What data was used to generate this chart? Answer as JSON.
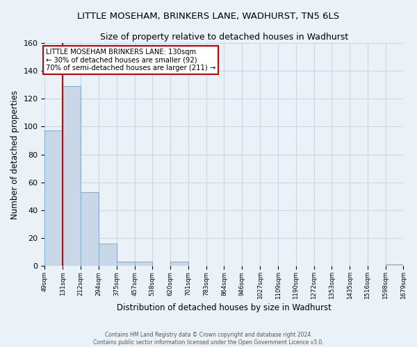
{
  "title": "LITTLE MOSEHAM, BRINKERS LANE, WADHURST, TN5 6LS",
  "subtitle": "Size of property relative to detached houses in Wadhurst",
  "xlabel": "Distribution of detached houses by size in Wadhurst",
  "ylabel": "Number of detached properties",
  "bin_edges": [
    49,
    131,
    212,
    294,
    375,
    457,
    538,
    620,
    701,
    783,
    864,
    946,
    1027,
    1109,
    1190,
    1272,
    1353,
    1435,
    1516,
    1598,
    1679
  ],
  "bin_counts": [
    97,
    129,
    53,
    16,
    3,
    3,
    0,
    3,
    0,
    0,
    0,
    0,
    0,
    0,
    0,
    0,
    0,
    0,
    0,
    1
  ],
  "tick_labels": [
    "49sqm",
    "131sqm",
    "212sqm",
    "294sqm",
    "375sqm",
    "457sqm",
    "538sqm",
    "620sqm",
    "701sqm",
    "783sqm",
    "864sqm",
    "946sqm",
    "1027sqm",
    "1109sqm",
    "1190sqm",
    "1272sqm",
    "1353sqm",
    "1435sqm",
    "1516sqm",
    "1598sqm",
    "1679sqm"
  ],
  "bar_color": "#c8d8e8",
  "bar_edge_color": "#7aaac8",
  "grid_color": "#c8d8e8",
  "bg_color": "#eaf2f8",
  "property_line_x": 131,
  "property_line_color": "#cc0000",
  "annotation_line1": "LITTLE MOSEHAM BRINKERS LANE: 130sqm",
  "annotation_line2": "← 30% of detached houses are smaller (92)",
  "annotation_line3": "70% of semi-detached houses are larger (211) →",
  "annotation_box_color": "#ffffff",
  "annotation_box_edge_color": "#cc0000",
  "ylim": [
    0,
    160
  ],
  "yticks": [
    0,
    20,
    40,
    60,
    80,
    100,
    120,
    140,
    160
  ],
  "footer_line1": "Contains HM Land Registry data © Crown copyright and database right 2024.",
  "footer_line2": "Contains public sector information licensed under the Open Government Licence v3.0."
}
